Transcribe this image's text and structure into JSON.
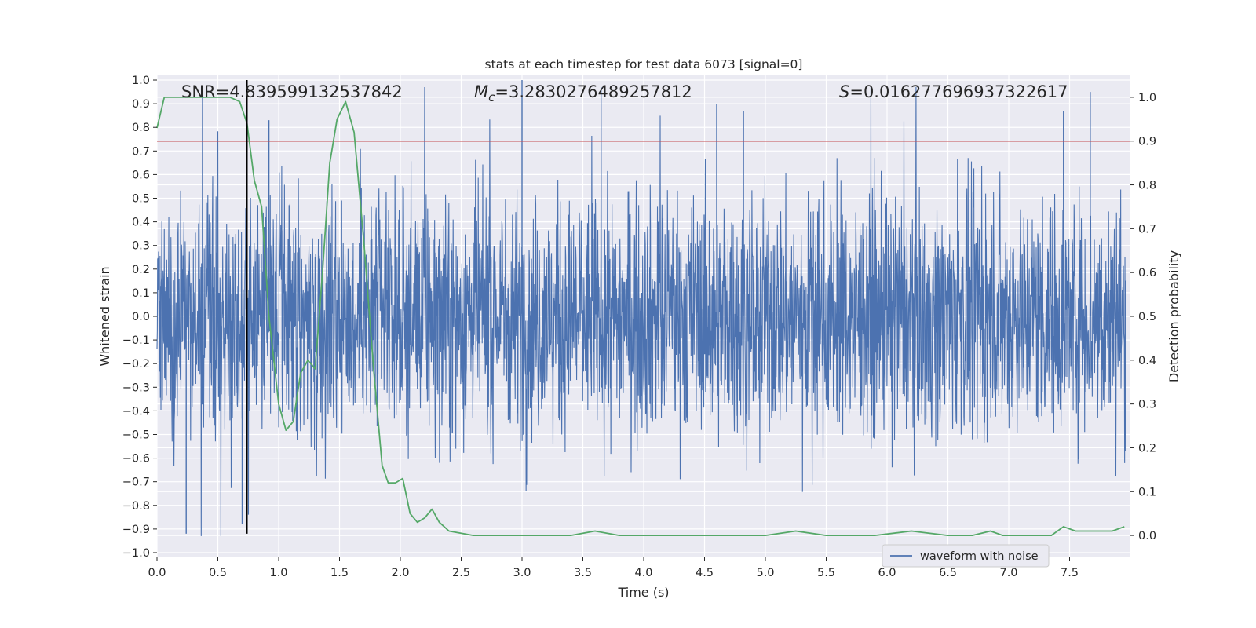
{
  "chart_data": {
    "type": "line",
    "title": "stats at each timestep for test data 6073 [signal=0]",
    "xlabel": "Time (s)",
    "ylabel": "Whitened strain",
    "y2label": "Detection probability",
    "xlim": [
      0.0,
      8.0
    ],
    "ylim": [
      -1.02,
      1.02
    ],
    "y2lim": [
      -0.05,
      1.05
    ],
    "x_ticks": [
      "0.0",
      "0.5",
      "1.0",
      "1.5",
      "2.0",
      "2.5",
      "3.0",
      "3.5",
      "4.0",
      "4.5",
      "5.0",
      "5.5",
      "6.0",
      "6.5",
      "7.0",
      "7.5"
    ],
    "y_ticks": [
      "1.0",
      "0.9",
      "0.8",
      "0.7",
      "0.6",
      "0.5",
      "0.4",
      "0.3",
      "0.2",
      "0.1",
      "0.0",
      "-0.1",
      "-0.2",
      "-0.3",
      "-0.4",
      "-0.5",
      "-0.6",
      "-0.7",
      "-0.8",
      "-0.9",
      "-1.0"
    ],
    "y2_ticks": [
      "1.0",
      "0.9",
      "0.8",
      "0.7",
      "0.6",
      "0.5",
      "0.4",
      "0.3",
      "0.2",
      "0.1",
      "0.0"
    ],
    "annotations": {
      "snr": "SNR=4.839599132537842",
      "mc_symbol": "M",
      "mc_sub": "c",
      "mc_value": "=3.2830276489257812",
      "s_symbol": "S",
      "s_value": "=0.016277696937322617"
    },
    "grid": true,
    "legend_position": "lower-right",
    "series": [
      {
        "name": "waveform with noise",
        "axis": "left",
        "color": "#4c72b0",
        "summary": "whitened strain noise, dense fill roughly -0.35 to 0.4 with spikes to about ±1.0; max spike 1.0 near t=3.0, min spike about -0.93 near t=0.24"
      },
      {
        "axis": "right",
        "color": "#55a868",
        "x": [
          0.0,
          0.06,
          0.12,
          0.2,
          0.3,
          0.4,
          0.5,
          0.6,
          0.68,
          0.74,
          0.8,
          0.86,
          0.92,
          1.0,
          1.06,
          1.12,
          1.18,
          1.24,
          1.3,
          1.36,
          1.42,
          1.48,
          1.55,
          1.62,
          1.7,
          1.78,
          1.85,
          1.9,
          1.96,
          2.02,
          2.08,
          2.14,
          2.2,
          2.26,
          2.32,
          2.4,
          2.6,
          2.8,
          3.0,
          3.2,
          3.4,
          3.6,
          3.8,
          3.9,
          4.2,
          4.6,
          5.0,
          5.25,
          5.5,
          5.9,
          6.2,
          6.5,
          6.7,
          6.85,
          6.95,
          7.2,
          7.35,
          7.45,
          7.55,
          7.7,
          7.85,
          7.95
        ],
        "values": [
          0.93,
          1.0,
          1.0,
          1.0,
          1.0,
          1.0,
          1.0,
          1.0,
          0.99,
          0.94,
          0.81,
          0.75,
          0.5,
          0.3,
          0.24,
          0.26,
          0.37,
          0.4,
          0.38,
          0.6,
          0.85,
          0.95,
          0.99,
          0.92,
          0.67,
          0.38,
          0.16,
          0.12,
          0.12,
          0.13,
          0.05,
          0.03,
          0.04,
          0.06,
          0.03,
          0.01,
          0.0,
          0.0,
          0.0,
          0.0,
          0.0,
          0.01,
          0.0,
          0.0,
          0.0,
          0.0,
          0.0,
          0.01,
          0.0,
          0.0,
          0.01,
          0.0,
          0.0,
          0.01,
          0.0,
          0.0,
          0.0,
          0.02,
          0.01,
          0.01,
          0.01,
          0.02
        ]
      },
      {
        "axis": "right",
        "color": "#c44e52",
        "type": "hline",
        "value": 0.9
      },
      {
        "axis": "left",
        "color": "#000000",
        "type": "vline",
        "x": 0.74,
        "y_range": [
          -0.92,
          1.0
        ]
      }
    ]
  }
}
